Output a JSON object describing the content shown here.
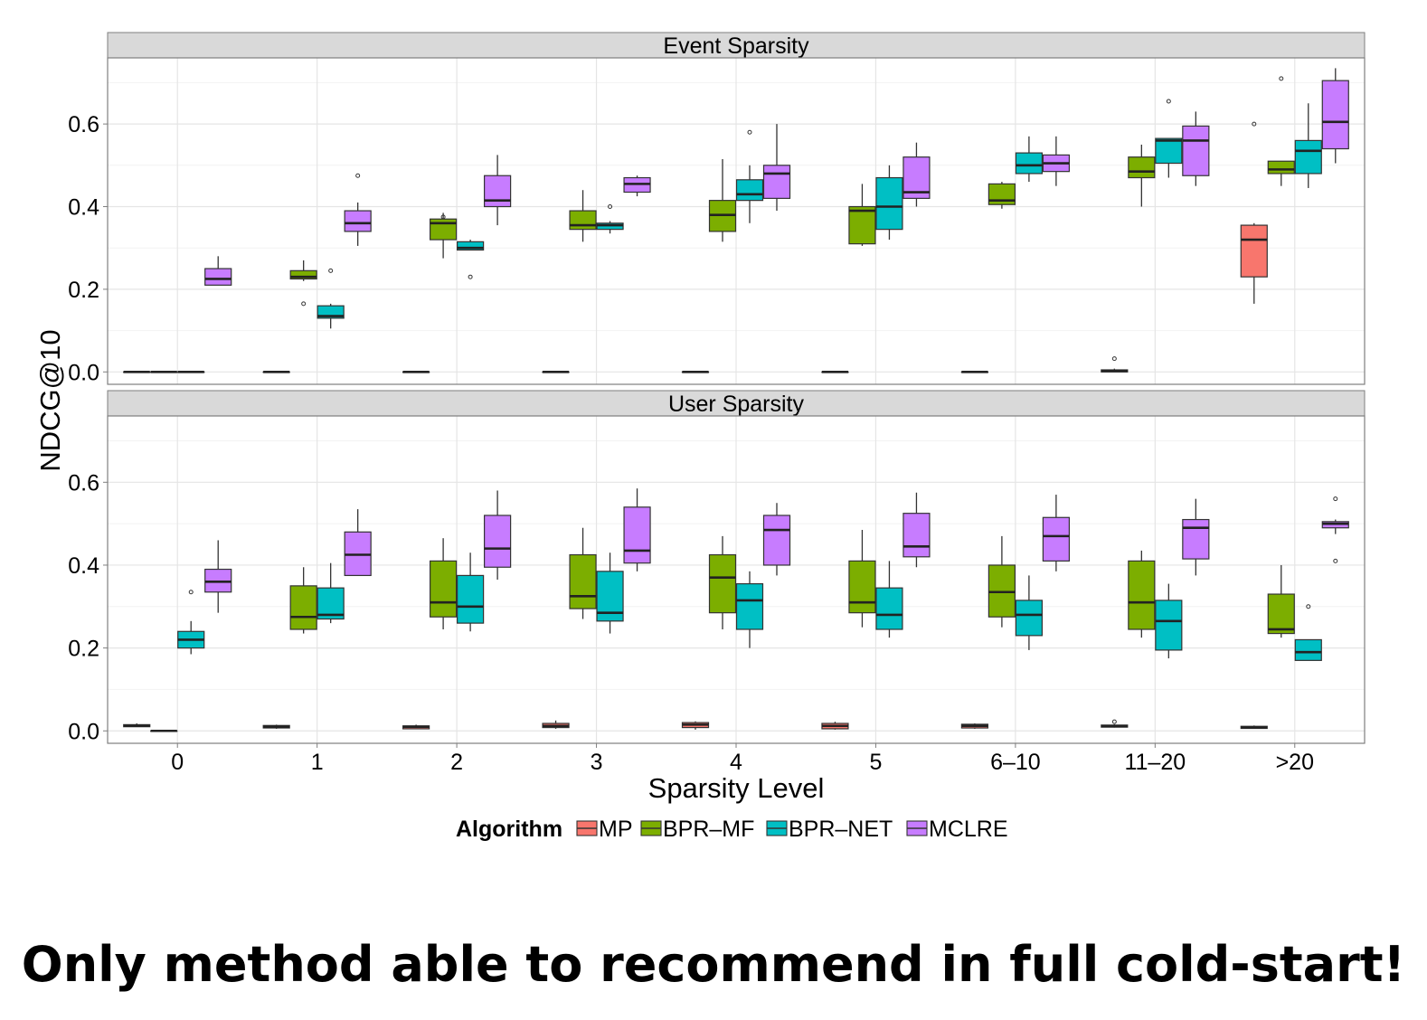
{
  "caption": "Only method able to recommend in full cold-start!",
  "chart_data": {
    "type": "boxplot",
    "xlabel": "Sparsity Level",
    "ylabel": "NDCG@10",
    "ylim": [
      -0.03,
      0.76
    ],
    "yticks": [
      0.0,
      0.2,
      0.4,
      0.6
    ],
    "ytick_labels": [
      "0.0",
      "0.2",
      "0.4",
      "0.6"
    ],
    "categories": [
      "0",
      "1",
      "2",
      "3",
      "4",
      "5",
      "6–10",
      "11–20",
      ">20"
    ],
    "grid": true,
    "legend": {
      "title": "Algorithm",
      "position": "bottom",
      "entries": [
        {
          "name": "MP",
          "color": "#F8766D"
        },
        {
          "name": "BPR–MF",
          "color": "#7CAE00"
        },
        {
          "name": "BPR–NET",
          "color": "#00BFC4"
        },
        {
          "name": "MCLRE",
          "color": "#C77CFF"
        }
      ]
    },
    "panels": [
      {
        "title": "Event Sparsity",
        "groups": [
          {
            "category": "0",
            "boxes": [
              {
                "series": 0,
                "min": 0,
                "q1": 0,
                "median": 0,
                "q3": 0,
                "max": 0
              },
              {
                "series": 1,
                "min": 0,
                "q1": 0,
                "median": 0,
                "q3": 0,
                "max": 0
              },
              {
                "series": 2,
                "min": 0,
                "q1": 0,
                "median": 0,
                "q3": 0,
                "max": 0
              },
              {
                "series": 3,
                "min": 0.21,
                "q1": 0.21,
                "median": 0.225,
                "q3": 0.25,
                "max": 0.28
              }
            ]
          },
          {
            "category": "1",
            "boxes": [
              {
                "series": 0,
                "min": 0,
                "q1": 0,
                "median": 0,
                "q3": 0,
                "max": 0
              },
              {
                "series": 1,
                "min": 0.22,
                "q1": 0.225,
                "median": 0.23,
                "q3": 0.245,
                "max": 0.27,
                "outliers": [
                  0.165
                ]
              },
              {
                "series": 2,
                "min": 0.105,
                "q1": 0.13,
                "median": 0.135,
                "q3": 0.16,
                "max": 0.165,
                "outliers": [
                  0.245
                ]
              },
              {
                "series": 3,
                "min": 0.305,
                "q1": 0.34,
                "median": 0.36,
                "q3": 0.39,
                "max": 0.41,
                "outliers": [
                  0.475
                ]
              }
            ]
          },
          {
            "category": "2",
            "boxes": [
              {
                "series": 0,
                "min": 0,
                "q1": 0,
                "median": 0,
                "q3": 0,
                "max": 0
              },
              {
                "series": 1,
                "min": 0.275,
                "q1": 0.32,
                "median": 0.36,
                "q3": 0.37,
                "max": 0.385,
                "outliers": [
                  0.375
                ]
              },
              {
                "series": 2,
                "min": 0.295,
                "q1": 0.295,
                "median": 0.3,
                "q3": 0.315,
                "max": 0.32,
                "outliers": [
                  0.23
                ]
              },
              {
                "series": 3,
                "min": 0.355,
                "q1": 0.4,
                "median": 0.415,
                "q3": 0.475,
                "max": 0.525
              }
            ]
          },
          {
            "category": "3",
            "boxes": [
              {
                "series": 0,
                "min": 0,
                "q1": 0,
                "median": 0,
                "q3": 0,
                "max": 0
              },
              {
                "series": 1,
                "min": 0.315,
                "q1": 0.345,
                "median": 0.355,
                "q3": 0.39,
                "max": 0.44
              },
              {
                "series": 2,
                "min": 0.335,
                "q1": 0.345,
                "median": 0.355,
                "q3": 0.36,
                "max": 0.365,
                "outliers": [
                  0.4
                ]
              },
              {
                "series": 3,
                "min": 0.425,
                "q1": 0.435,
                "median": 0.455,
                "q3": 0.47,
                "max": 0.475
              }
            ]
          },
          {
            "category": "4",
            "boxes": [
              {
                "series": 0,
                "min": 0,
                "q1": 0,
                "median": 0,
                "q3": 0,
                "max": 0
              },
              {
                "series": 1,
                "min": 0.315,
                "q1": 0.34,
                "median": 0.38,
                "q3": 0.415,
                "max": 0.515
              },
              {
                "series": 2,
                "min": 0.36,
                "q1": 0.415,
                "median": 0.43,
                "q3": 0.465,
                "max": 0.5,
                "outliers": [
                  0.58
                ]
              },
              {
                "series": 3,
                "min": 0.39,
                "q1": 0.42,
                "median": 0.48,
                "q3": 0.5,
                "max": 0.6
              }
            ]
          },
          {
            "category": "5",
            "boxes": [
              {
                "series": 0,
                "min": 0,
                "q1": 0,
                "median": 0,
                "q3": 0,
                "max": 0
              },
              {
                "series": 1,
                "min": 0.305,
                "q1": 0.31,
                "median": 0.39,
                "q3": 0.4,
                "max": 0.455
              },
              {
                "series": 2,
                "min": 0.32,
                "q1": 0.345,
                "median": 0.4,
                "q3": 0.47,
                "max": 0.5
              },
              {
                "series": 3,
                "min": 0.4,
                "q1": 0.42,
                "median": 0.435,
                "q3": 0.52,
                "max": 0.555
              }
            ]
          },
          {
            "category": "6–10",
            "boxes": [
              {
                "series": 0,
                "min": 0,
                "q1": 0,
                "median": 0,
                "q3": 0,
                "max": 0
              },
              {
                "series": 1,
                "min": 0.395,
                "q1": 0.405,
                "median": 0.415,
                "q3": 0.455,
                "max": 0.46
              },
              {
                "series": 2,
                "min": 0.46,
                "q1": 0.48,
                "median": 0.5,
                "q3": 0.53,
                "max": 0.57
              },
              {
                "series": 3,
                "min": 0.45,
                "q1": 0.485,
                "median": 0.505,
                "q3": 0.525,
                "max": 0.57
              }
            ]
          },
          {
            "category": "11–20",
            "boxes": [
              {
                "series": 0,
                "min": 0,
                "q1": 0,
                "median": 0.002,
                "q3": 0.005,
                "max": 0.008,
                "outliers": [
                  0.032
                ]
              },
              {
                "series": 1,
                "min": 0.4,
                "q1": 0.47,
                "median": 0.485,
                "q3": 0.52,
                "max": 0.55
              },
              {
                "series": 2,
                "min": 0.47,
                "q1": 0.505,
                "median": 0.56,
                "q3": 0.565,
                "max": 0.565,
                "outliers": [
                  0.655
                ]
              },
              {
                "series": 3,
                "min": 0.45,
                "q1": 0.475,
                "median": 0.56,
                "q3": 0.595,
                "max": 0.63
              }
            ]
          },
          {
            "category": ">20",
            "boxes": [
              {
                "series": 0,
                "min": 0.165,
                "q1": 0.23,
                "median": 0.32,
                "q3": 0.355,
                "max": 0.36,
                "outliers": [
                  0.6
                ]
              },
              {
                "series": 1,
                "min": 0.45,
                "q1": 0.48,
                "median": 0.49,
                "q3": 0.51,
                "max": 0.51,
                "outliers": [
                  0.71
                ]
              },
              {
                "series": 2,
                "min": 0.445,
                "q1": 0.48,
                "median": 0.535,
                "q3": 0.56,
                "max": 0.65
              },
              {
                "series": 3,
                "min": 0.505,
                "q1": 0.54,
                "median": 0.605,
                "q3": 0.705,
                "max": 0.735
              }
            ]
          }
        ]
      },
      {
        "title": "User Sparsity",
        "groups": [
          {
            "category": "0",
            "boxes": [
              {
                "series": 0,
                "min": 0.01,
                "q1": 0.01,
                "median": 0.012,
                "q3": 0.015,
                "max": 0.018
              },
              {
                "series": 1,
                "min": 0,
                "q1": 0,
                "median": 0,
                "q3": 0,
                "max": 0
              },
              {
                "series": 2,
                "min": 0.185,
                "q1": 0.2,
                "median": 0.22,
                "q3": 0.24,
                "max": 0.265,
                "outliers": [
                  0.335
                ]
              },
              {
                "series": 3,
                "min": 0.285,
                "q1": 0.335,
                "median": 0.36,
                "q3": 0.39,
                "max": 0.46
              }
            ]
          },
          {
            "category": "1",
            "boxes": [
              {
                "series": 0,
                "min": 0.005,
                "q1": 0.007,
                "median": 0.01,
                "q3": 0.013,
                "max": 0.015
              },
              {
                "series": 1,
                "min": 0.235,
                "q1": 0.245,
                "median": 0.275,
                "q3": 0.35,
                "max": 0.395
              },
              {
                "series": 2,
                "min": 0.26,
                "q1": 0.27,
                "median": 0.28,
                "q3": 0.345,
                "max": 0.405
              },
              {
                "series": 3,
                "min": 0.375,
                "q1": 0.375,
                "median": 0.425,
                "q3": 0.48,
                "max": 0.535
              }
            ]
          },
          {
            "category": "2",
            "boxes": [
              {
                "series": 0,
                "min": 0.005,
                "q1": 0.005,
                "median": 0.01,
                "q3": 0.012,
                "max": 0.015
              },
              {
                "series": 1,
                "min": 0.245,
                "q1": 0.275,
                "median": 0.31,
                "q3": 0.41,
                "max": 0.465
              },
              {
                "series": 2,
                "min": 0.24,
                "q1": 0.26,
                "median": 0.3,
                "q3": 0.375,
                "max": 0.43
              },
              {
                "series": 3,
                "min": 0.365,
                "q1": 0.395,
                "median": 0.44,
                "q3": 0.52,
                "max": 0.58
              }
            ]
          },
          {
            "category": "3",
            "boxes": [
              {
                "series": 0,
                "min": 0.005,
                "q1": 0.008,
                "median": 0.012,
                "q3": 0.018,
                "max": 0.025
              },
              {
                "series": 1,
                "min": 0.27,
                "q1": 0.295,
                "median": 0.325,
                "q3": 0.425,
                "max": 0.49
              },
              {
                "series": 2,
                "min": 0.235,
                "q1": 0.265,
                "median": 0.285,
                "q3": 0.385,
                "max": 0.43
              },
              {
                "series": 3,
                "min": 0.385,
                "q1": 0.405,
                "median": 0.435,
                "q3": 0.54,
                "max": 0.585
              }
            ]
          },
          {
            "category": "4",
            "boxes": [
              {
                "series": 0,
                "min": 0.003,
                "q1": 0.008,
                "median": 0.015,
                "q3": 0.02,
                "max": 0.023
              },
              {
                "series": 1,
                "min": 0.245,
                "q1": 0.285,
                "median": 0.37,
                "q3": 0.425,
                "max": 0.47
              },
              {
                "series": 2,
                "min": 0.2,
                "q1": 0.245,
                "median": 0.315,
                "q3": 0.355,
                "max": 0.385
              },
              {
                "series": 3,
                "min": 0.375,
                "q1": 0.4,
                "median": 0.485,
                "q3": 0.52,
                "max": 0.55
              }
            ]
          },
          {
            "category": "5",
            "boxes": [
              {
                "series": 0,
                "min": 0.003,
                "q1": 0.005,
                "median": 0.012,
                "q3": 0.018,
                "max": 0.022
              },
              {
                "series": 1,
                "min": 0.25,
                "q1": 0.285,
                "median": 0.31,
                "q3": 0.41,
                "max": 0.485
              },
              {
                "series": 2,
                "min": 0.225,
                "q1": 0.245,
                "median": 0.28,
                "q3": 0.345,
                "max": 0.41
              },
              {
                "series": 3,
                "min": 0.395,
                "q1": 0.42,
                "median": 0.445,
                "q3": 0.525,
                "max": 0.575
              }
            ]
          },
          {
            "category": "6–10",
            "boxes": [
              {
                "series": 0,
                "min": 0.005,
                "q1": 0.007,
                "median": 0.012,
                "q3": 0.016,
                "max": 0.018
              },
              {
                "series": 1,
                "min": 0.25,
                "q1": 0.275,
                "median": 0.335,
                "q3": 0.4,
                "max": 0.47
              },
              {
                "series": 2,
                "min": 0.195,
                "q1": 0.23,
                "median": 0.28,
                "q3": 0.315,
                "max": 0.375
              },
              {
                "series": 3,
                "min": 0.385,
                "q1": 0.41,
                "median": 0.47,
                "q3": 0.515,
                "max": 0.57
              }
            ]
          },
          {
            "category": "11–20",
            "boxes": [
              {
                "series": 0,
                "min": 0.008,
                "q1": 0.009,
                "median": 0.011,
                "q3": 0.014,
                "max": 0.016,
                "outliers": [
                  0.022
                ]
              },
              {
                "series": 1,
                "min": 0.225,
                "q1": 0.245,
                "median": 0.31,
                "q3": 0.41,
                "max": 0.435
              },
              {
                "series": 2,
                "min": 0.175,
                "q1": 0.195,
                "median": 0.265,
                "q3": 0.315,
                "max": 0.355
              },
              {
                "series": 3,
                "min": 0.375,
                "q1": 0.415,
                "median": 0.49,
                "q3": 0.51,
                "max": 0.56
              }
            ]
          },
          {
            "category": ">20",
            "boxes": [
              {
                "series": 0,
                "min": 0.005,
                "q1": 0.006,
                "median": 0.008,
                "q3": 0.011,
                "max": 0.013
              },
              {
                "series": 1,
                "min": 0.225,
                "q1": 0.235,
                "median": 0.245,
                "q3": 0.33,
                "max": 0.4
              },
              {
                "series": 2,
                "min": 0.17,
                "q1": 0.17,
                "median": 0.19,
                "q3": 0.22,
                "max": 0.22,
                "outliers": [
                  0.3
                ]
              },
              {
                "series": 3,
                "min": 0.475,
                "q1": 0.49,
                "median": 0.5,
                "q3": 0.505,
                "max": 0.51,
                "outliers": [
                  0.56,
                  0.41
                ]
              }
            ]
          }
        ]
      }
    ]
  }
}
